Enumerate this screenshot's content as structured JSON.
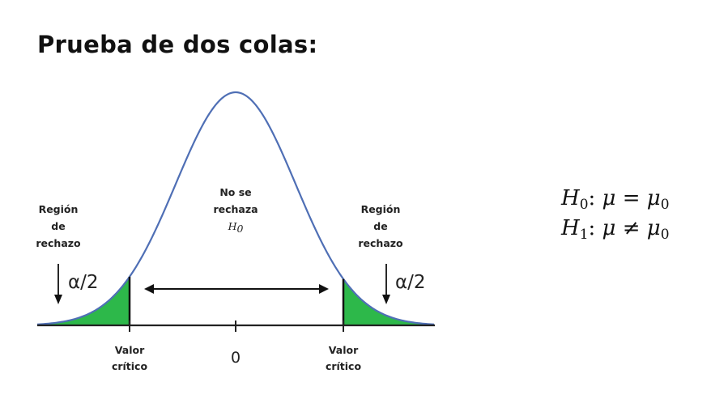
{
  "title": "Prueba de dos colas:",
  "diagram": {
    "left_region": {
      "line1": "Región",
      "line2": "de",
      "line3": "rechazo",
      "alpha": "α/2"
    },
    "right_region": {
      "line1": "Región",
      "line2": "de",
      "line3": "rechazo",
      "alpha": "α/2"
    },
    "center": {
      "line1": "No se",
      "line2": "rechaza",
      "hyp_letter": "H",
      "hyp_sub": "0"
    },
    "axis": {
      "left_label_line1": "Valor",
      "left_label_line2": "crítico",
      "center_label": "0",
      "right_label_line1": "Valor",
      "right_label_line2": "crítico"
    },
    "colors": {
      "curve": "#4f6fb5",
      "rejection_fill": "#2db84a",
      "axis": "#222222"
    }
  },
  "hypotheses": {
    "h0": {
      "letter": "H",
      "sub": "0",
      "colon": ":",
      "mu": "μ",
      "op": "=",
      "rhs": "μ",
      "rhs_sub": "0"
    },
    "h1": {
      "letter": "H",
      "sub": "1",
      "colon": ":",
      "mu": "μ",
      "op": "≠",
      "rhs": "μ",
      "rhs_sub": "0"
    }
  }
}
